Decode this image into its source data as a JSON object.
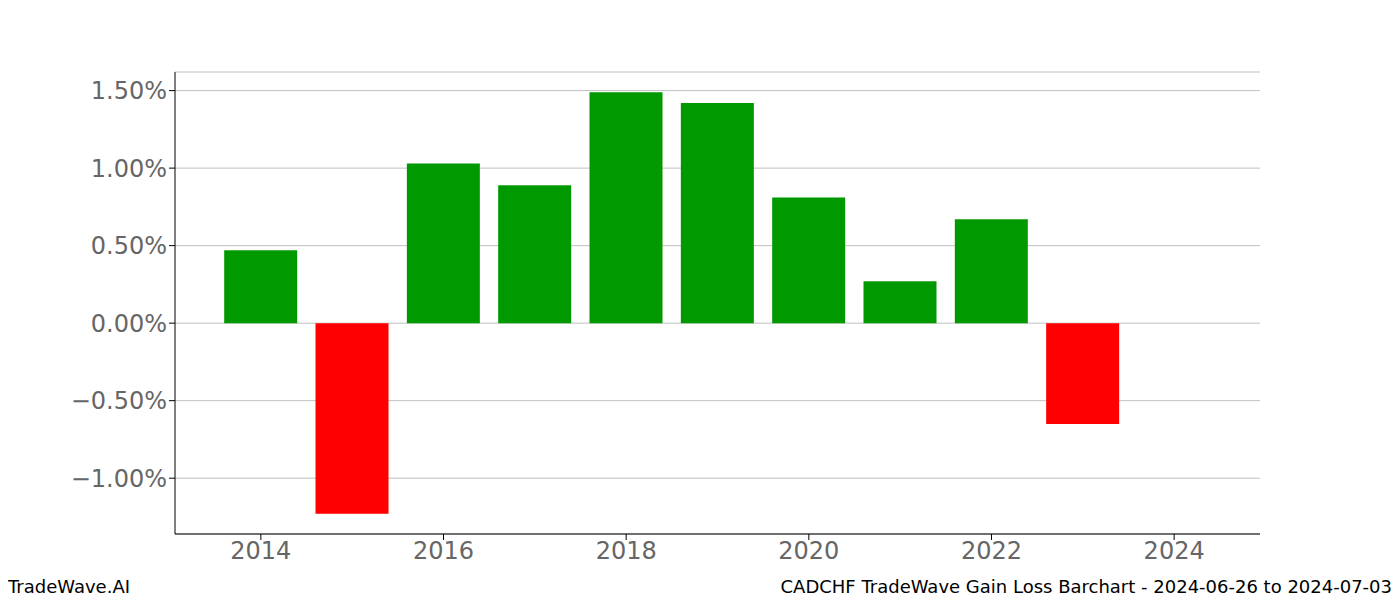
{
  "chart_data": {
    "type": "bar",
    "title": "CADCHF TradeWave Gain Loss Barchart - 2024-06-26 to 2024-07-03",
    "subtitle": "TradeWave.AI",
    "x": [
      2014,
      2015,
      2016,
      2017,
      2018,
      2019,
      2020,
      2021,
      2022,
      2023
    ],
    "values": [
      0.47,
      -1.23,
      1.03,
      0.89,
      1.49,
      1.42,
      0.81,
      0.27,
      0.67,
      -0.65
    ],
    "colors": [
      "#009900",
      "#ff0000",
      "#009900",
      "#009900",
      "#009900",
      "#009900",
      "#009900",
      "#009900",
      "#009900",
      "#ff0000"
    ],
    "xlim": [
      2013.06,
      2024.94
    ],
    "xticks": [
      2014,
      2016,
      2018,
      2020,
      2022,
      2024
    ],
    "ylim": [
      -1.36,
      1.62
    ],
    "yticks": [
      {
        "value": -1,
        "label": "−1.00%"
      },
      {
        "value": -0.5,
        "label": "−0.50%"
      },
      {
        "value": 0,
        "label": "0.00%"
      },
      {
        "value": 0.5,
        "label": "0.50%"
      },
      {
        "value": 1,
        "label": "1.00%"
      },
      {
        "value": 1.5,
        "label": "1.50%"
      }
    ],
    "grid": true
  }
}
